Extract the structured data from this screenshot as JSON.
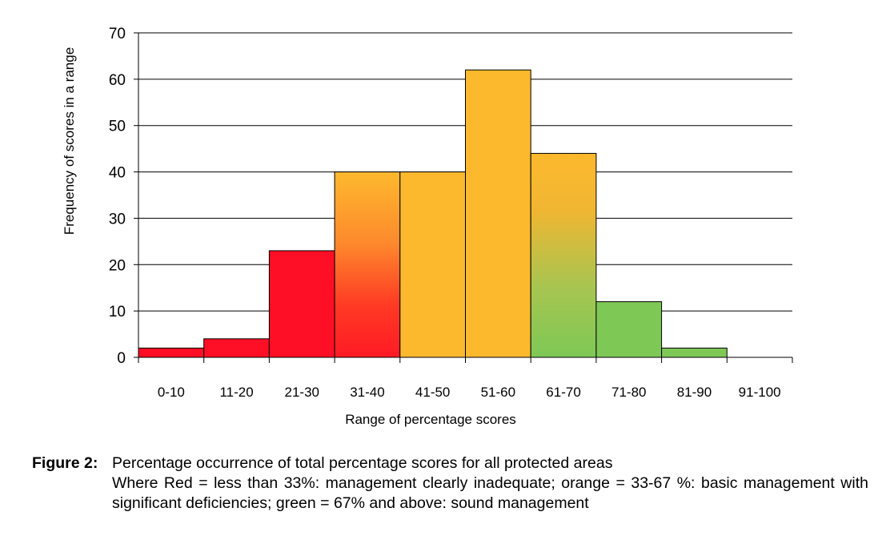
{
  "chart_data": {
    "type": "bar",
    "title": "",
    "xlabel": "Range of percentage scores",
    "ylabel": "Frequency of scores in a range",
    "categories": [
      "0-10",
      "11-20",
      "21-30",
      "31-40",
      "41-50",
      "51-60",
      "61-70",
      "71-80",
      "81-90",
      "91-100"
    ],
    "values": [
      2,
      4,
      23,
      40,
      40,
      62,
      44,
      12,
      2,
      0
    ],
    "ylim": [
      0,
      70
    ],
    "yticks": [
      0,
      10,
      20,
      30,
      40,
      50,
      60,
      70
    ],
    "grid": true,
    "legend": "none",
    "bar_fills": [
      "red",
      "red",
      "red",
      "red-to-orange",
      "orange",
      "orange",
      "orange-to-green",
      "green",
      "green",
      "green"
    ],
    "colors": {
      "red": "#ff0f25",
      "orange": "#fdb92e",
      "green": "#7ec856",
      "grid": "#000000",
      "outline": "#000000"
    }
  },
  "caption": {
    "label": "Figure 2:",
    "title": "Percentage occurrence of total percentage scores for all protected areas",
    "note": "Where Red = less than 33%: management clearly inadequate; orange = 33-67 %: basic management with significant deficiencies; green = 67% and above: sound management"
  }
}
